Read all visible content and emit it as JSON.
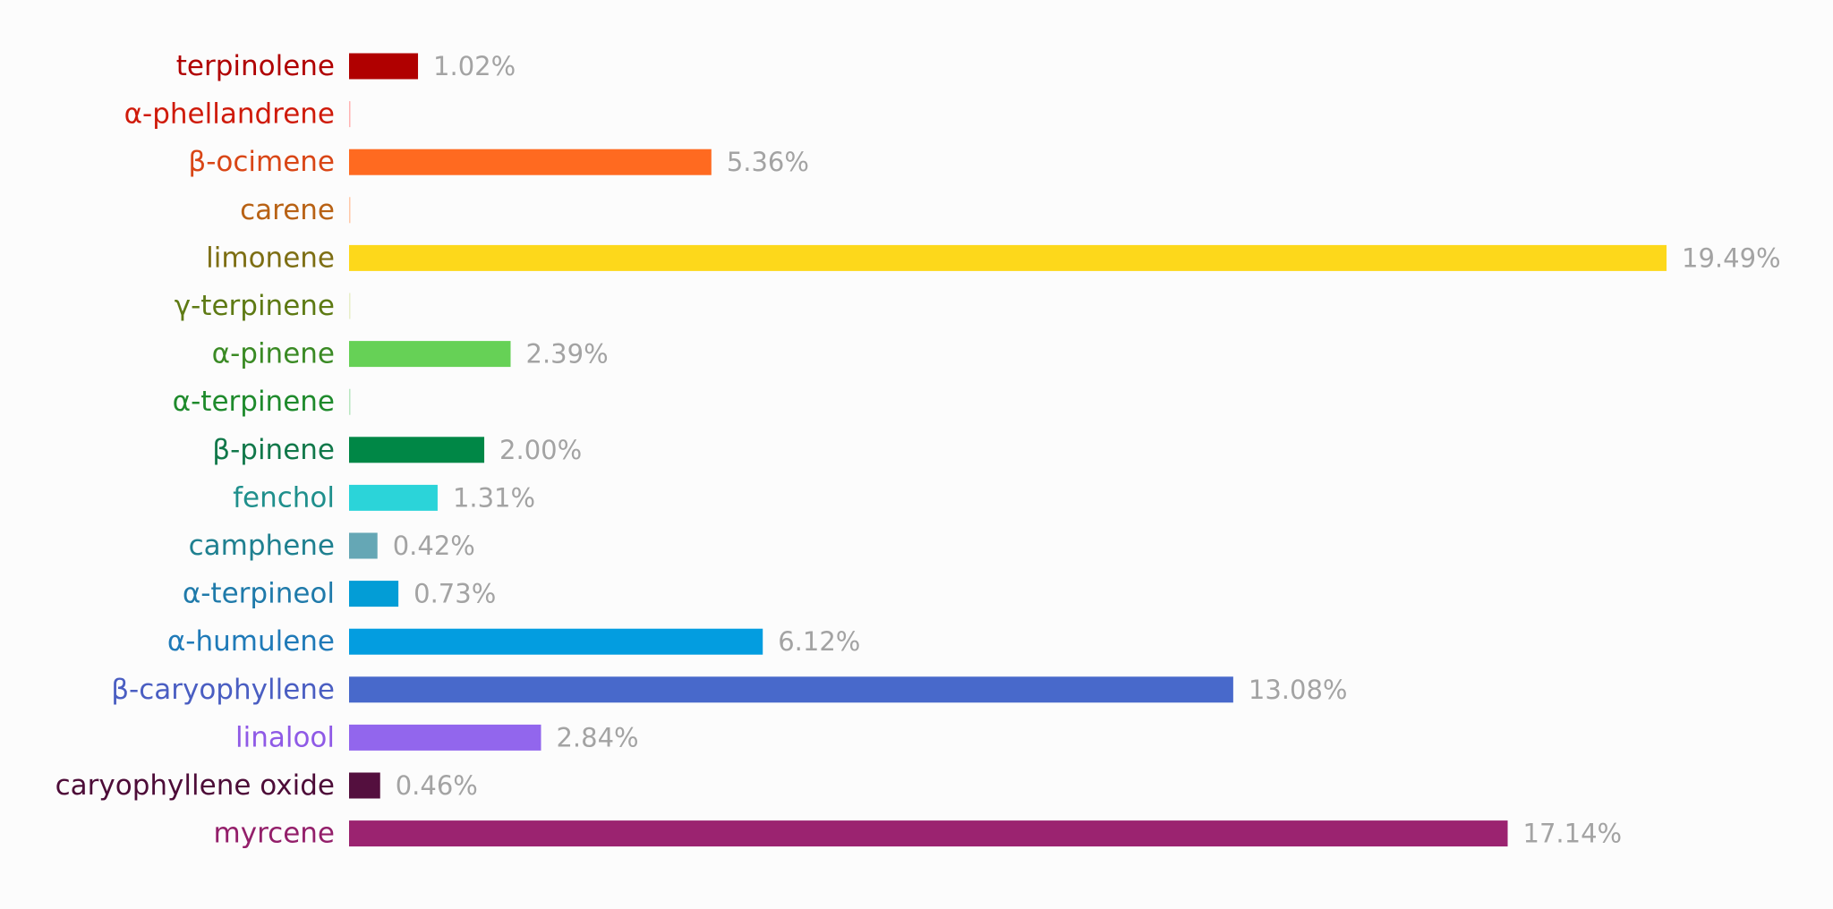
{
  "chart_data": {
    "type": "bar",
    "orientation": "horizontal",
    "xlim": [
      0,
      19.49
    ],
    "grid": false,
    "value_suffix": "%",
    "categories": [
      "terpinolene",
      "α-phellandrene",
      "β-ocimene",
      "carene",
      "limonene",
      "γ-terpinene",
      "α-pinene",
      "α-terpinene",
      "β-pinene",
      "fenchol",
      "camphene",
      "α-terpineol",
      "α-humulene",
      "β-caryophyllene",
      "linalool",
      "caryophyllene oxide",
      "myrcene"
    ],
    "values": [
      1.02,
      0,
      5.36,
      0,
      19.49,
      0,
      2.39,
      0,
      2.0,
      1.31,
      0.42,
      0.73,
      6.12,
      13.08,
      2.84,
      0.46,
      17.14
    ],
    "data_labels": [
      "1.02%",
      "",
      "5.36%",
      "",
      "19.49%",
      "",
      "2.39%",
      "",
      "2.00%",
      "1.31%",
      "0.42%",
      "0.73%",
      "6.12%",
      "13.08%",
      "2.84%",
      "0.46%",
      "17.14%"
    ],
    "bar_colors": [
      "#b00000",
      "#ffb3b3",
      "#ff6a20",
      "#ffc9a8",
      "#fdd81b",
      "#e8eec8",
      "#66d156",
      "#b8e6c0",
      "#008746",
      "#2bd4d9",
      "#65a7b5",
      "#039dd6",
      "#039de0",
      "#4869cb",
      "#9266ed",
      "#540f3e",
      "#9b2370"
    ],
    "label_colors": [
      "#b00000",
      "#cf1a0a",
      "#d94616",
      "#b86215",
      "#7d6e13",
      "#5e7a14",
      "#3a8a24",
      "#1e8a2c",
      "#11784a",
      "#1f8f8c",
      "#1f8090",
      "#1f7aaa",
      "#1f7ab8",
      "#4a5ec2",
      "#8f5ae6",
      "#4d0c38",
      "#931f6a"
    ]
  }
}
